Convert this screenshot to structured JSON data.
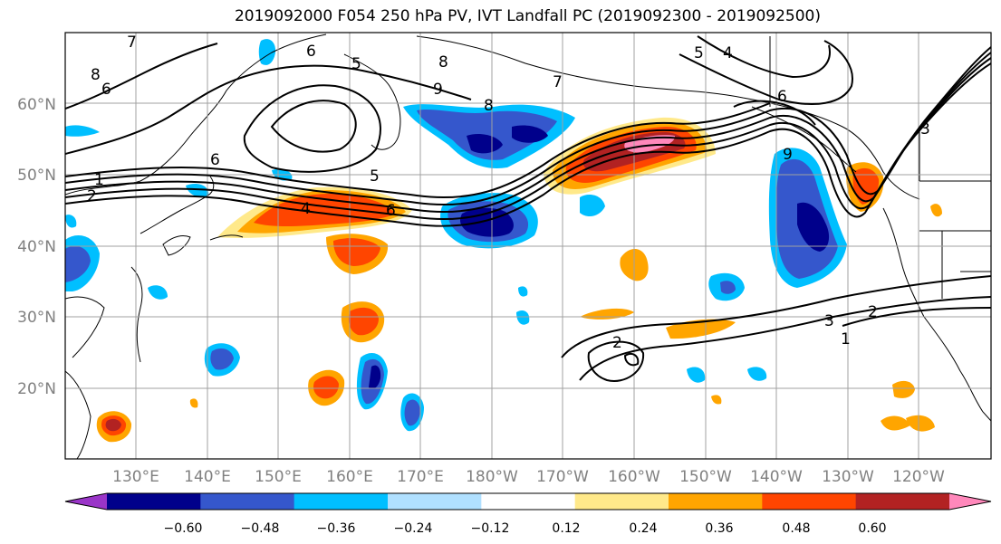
{
  "title": "2019092000 F054 250 hPa PV, IVT Landfall PC (2019092300 - 2019092500)",
  "lon_labels": [
    "130°E",
    "140°E",
    "150°E",
    "160°E",
    "170°E",
    "180°W",
    "170°W",
    "160°W",
    "150°W",
    "140°W",
    "130°W",
    "120°W"
  ],
  "lat_labels": [
    "60°N",
    "50°N",
    "40°N",
    "30°N",
    "20°N"
  ],
  "colorbar": {
    "tick_labels": [
      "−0.60",
      "−0.48",
      "−0.36",
      "−0.24",
      "−0.12",
      "0.12",
      "0.24",
      "0.36",
      "0.48",
      "0.60"
    ],
    "colors": [
      "#9a35c8",
      "#00008b",
      "#3557cc",
      "#00bfff",
      "#b0e0ff",
      "#ffffff",
      "#ffe98a",
      "#ffa500",
      "#ff4500",
      "#b22222",
      "#ff88bb"
    ]
  },
  "contour_labels": [
    "8",
    "6",
    "7",
    "6",
    "5",
    "8",
    "8",
    "9",
    "5",
    "4",
    "6",
    "1",
    "2",
    "5",
    "6",
    "4",
    "6",
    "9",
    "3",
    "2",
    "1",
    "3",
    "2",
    "7"
  ],
  "legend_colors": {
    "neg_strong": "#00008b",
    "neg_mid": "#3557cc",
    "neg_weak": "#00bfff",
    "neg_faint": "#b0e0ff",
    "pos_faint": "#ffe98a",
    "pos_weak": "#ffa500",
    "pos_mid": "#ff4500",
    "pos_strong": "#b22222",
    "pos_max": "#ff88bb"
  }
}
